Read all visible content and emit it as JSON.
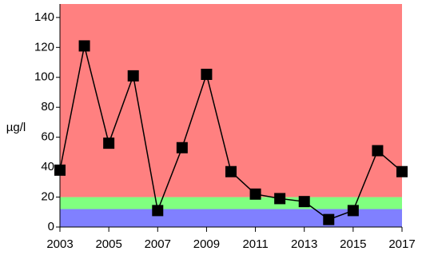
{
  "chart_data": {
    "type": "line",
    "y_label": "µg/l",
    "x": [
      2003,
      2004,
      2005,
      2006,
      2007,
      2008,
      2009,
      2010,
      2011,
      2012,
      2013,
      2014,
      2015,
      2016,
      2017
    ],
    "values": [
      38,
      121,
      56,
      101,
      11,
      53,
      102,
      37,
      22,
      19,
      17,
      5,
      11,
      51,
      37
    ],
    "color": "#000000",
    "marker": "square",
    "xlim": [
      2003,
      2017
    ],
    "xticks": [
      2003,
      2005,
      2007,
      2009,
      2011,
      2013,
      2015,
      2017
    ],
    "ylim": [
      0,
      149
    ],
    "yticks": [
      0,
      20,
      40,
      60,
      80,
      100,
      120,
      140
    ],
    "bands": [
      {
        "from": 0,
        "to": 12,
        "color": "#8080ff"
      },
      {
        "from": 12,
        "to": 20,
        "color": "#80ff80"
      },
      {
        "from": 20,
        "to": 149,
        "color": "#ff8080"
      }
    ]
  }
}
